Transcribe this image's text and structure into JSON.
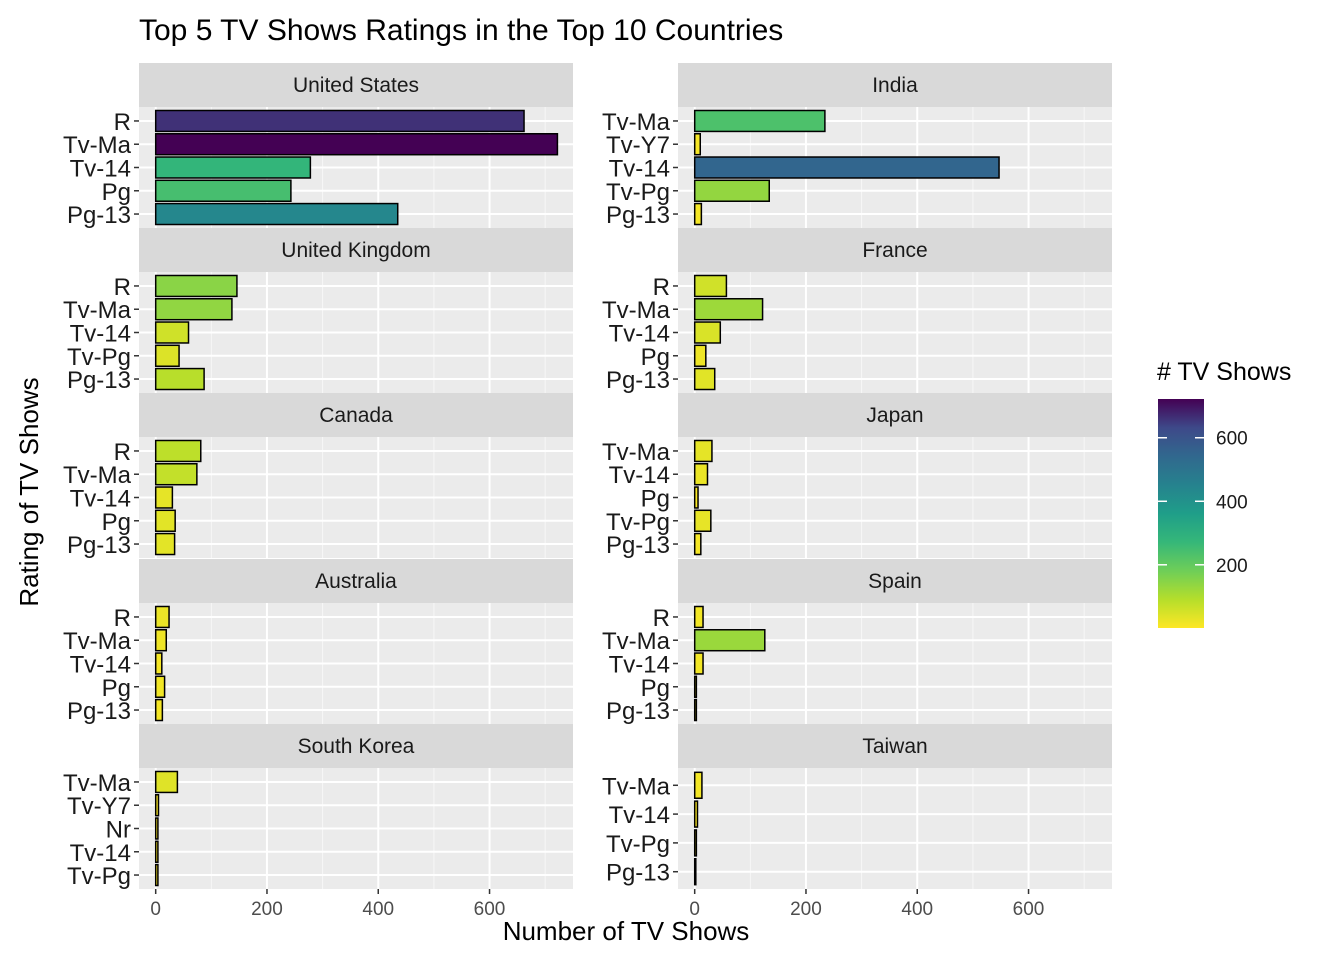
{
  "chart_data": {
    "type": "bar",
    "orientation": "horizontal",
    "title": "Top 5 TV Shows Ratings in the Top 10 Countries",
    "xlabel": "Number of TV Shows",
    "ylabel": "Rating of TV Shows",
    "xlim": [
      -30,
      750
    ],
    "xticks": [
      0,
      200,
      400,
      600
    ],
    "legend": {
      "title": "# TV Shows",
      "position": "right",
      "ticks": [
        200,
        400,
        600
      ],
      "range": [
        1,
        722
      ],
      "palette": "viridis (reversed)"
    },
    "grid": true,
    "panels": [
      {
        "country": "United States",
        "ratings": [
          "R",
          "Tv-Ma",
          "Tv-14",
          "Pg",
          "Pg-13"
        ],
        "values": [
          662,
          722,
          278,
          243,
          435
        ]
      },
      {
        "country": "India",
        "ratings": [
          "Tv-Ma",
          "Tv-Y7",
          "Tv-14",
          "Tv-Pg",
          "Pg-13"
        ],
        "values": [
          234,
          10,
          547,
          134,
          12
        ]
      },
      {
        "country": "United Kingdom",
        "ratings": [
          "R",
          "Tv-Ma",
          "Tv-14",
          "Tv-Pg",
          "Pg-13"
        ],
        "values": [
          146,
          137,
          59,
          42,
          87
        ]
      },
      {
        "country": "France",
        "ratings": [
          "R",
          "Tv-Ma",
          "Tv-14",
          "Pg",
          "Pg-13"
        ],
        "values": [
          57,
          122,
          46,
          20,
          36
        ]
      },
      {
        "country": "Canada",
        "ratings": [
          "R",
          "Tv-Ma",
          "Tv-14",
          "Pg",
          "Pg-13"
        ],
        "values": [
          81,
          74,
          30,
          35,
          34
        ]
      },
      {
        "country": "Japan",
        "ratings": [
          "Tv-Ma",
          "Tv-14",
          "Pg",
          "Tv-Pg",
          "Pg-13"
        ],
        "values": [
          31,
          23,
          6,
          29,
          11
        ]
      },
      {
        "country": "Australia",
        "ratings": [
          "R",
          "Tv-Ma",
          "Tv-14",
          "Pg",
          "Pg-13"
        ],
        "values": [
          24,
          19,
          11,
          16,
          12
        ]
      },
      {
        "country": "Spain",
        "ratings": [
          "R",
          "Tv-Ma",
          "Tv-14",
          "Pg",
          "Pg-13"
        ],
        "values": [
          15,
          126,
          15,
          3,
          3
        ]
      },
      {
        "country": "South Korea",
        "ratings": [
          "Tv-Ma",
          "Tv-Y7",
          "Nr",
          "Tv-14",
          "Tv-Pg"
        ],
        "values": [
          39,
          5,
          4,
          4,
          4
        ]
      },
      {
        "country": "Taiwan",
        "ratings": [
          "Tv-Ma",
          "Tv-14",
          "Tv-Pg",
          "Pg-13"
        ],
        "values": [
          13,
          5,
          3,
          2
        ]
      }
    ]
  }
}
